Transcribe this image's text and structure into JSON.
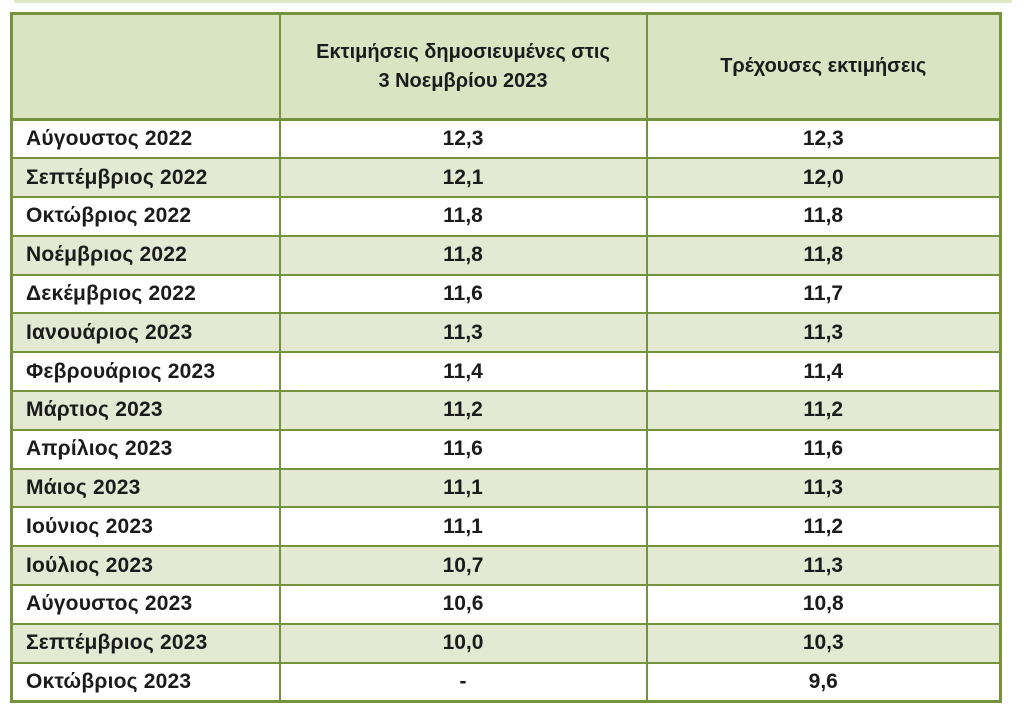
{
  "colors": {
    "border": "#76923c",
    "header_bg": "#d8e4c2",
    "shaded_row_bg": "#e3e9d2",
    "plain_row_bg": "#ffffff",
    "text": "#1b1b1b"
  },
  "table": {
    "header": {
      "month_col": "",
      "published_col": "Εκτιμήσεις δημοσιευμένες στις 3 Νοεμβρίου 2023",
      "current_col": "Τρέχουσες εκτιμήσεις"
    },
    "rows": [
      {
        "month": "Αύγουστος 2022",
        "published": "12,3",
        "current": "12,3"
      },
      {
        "month": "Σεπτέμβριος 2022",
        "published": "12,1",
        "current": "12,0"
      },
      {
        "month": "Οκτώβριος 2022",
        "published": "11,8",
        "current": "11,8"
      },
      {
        "month": "Νοέμβριος 2022",
        "published": "11,8",
        "current": "11,8"
      },
      {
        "month": "Δεκέμβριος 2022",
        "published": "11,6",
        "current": "11,7"
      },
      {
        "month": "Ιανουάριος 2023",
        "published": "11,3",
        "current": "11,3"
      },
      {
        "month": "Φεβρουάριος 2023",
        "published": "11,4",
        "current": "11,4"
      },
      {
        "month": "Μάρτιος 2023",
        "published": "11,2",
        "current": "11,2"
      },
      {
        "month": "Απρίλιος 2023",
        "published": "11,6",
        "current": "11,6"
      },
      {
        "month": "Μάιος 2023",
        "published": "11,1",
        "current": "11,3"
      },
      {
        "month": "Ιούνιος 2023",
        "published": "11,1",
        "current": "11,2"
      },
      {
        "month": "Ιούλιος 2023",
        "published": "10,7",
        "current": "11,3"
      },
      {
        "month": "Αύγουστος 2023",
        "published": "10,6",
        "current": "10,8"
      },
      {
        "month": "Σεπτέμβριος 2023",
        "published": "10,0",
        "current": "10,3"
      },
      {
        "month": "Οκτώβριος 2023",
        "published": "-",
        "current": "9,6"
      }
    ]
  },
  "chart_data": {
    "type": "table",
    "title": "",
    "columns": [
      "",
      "Εκτιμήσεις δημοσιευμένες στις 3 Νοεμβρίου 2023",
      "Τρέχουσες εκτιμήσεις"
    ],
    "categories": [
      "Αύγουστος 2022",
      "Σεπτέμβριος 2022",
      "Οκτώβριος 2022",
      "Νοέμβριος 2022",
      "Δεκέμβριος 2022",
      "Ιανουάριος 2023",
      "Φεβρουάριος 2023",
      "Μάρτιος 2023",
      "Απρίλιος 2023",
      "Μάιος 2023",
      "Ιούνιος 2023",
      "Ιούλιος 2023",
      "Αύγουστος 2023",
      "Σεπτέμβριος 2023",
      "Οκτώβριος 2023"
    ],
    "series": [
      {
        "name": "Εκτιμήσεις δημοσιευμένες στις 3 Νοεμβρίου 2023",
        "values": [
          12.3,
          12.1,
          11.8,
          11.8,
          11.6,
          11.3,
          11.4,
          11.2,
          11.6,
          11.1,
          11.1,
          10.7,
          10.6,
          10.0,
          null
        ]
      },
      {
        "name": "Τρέχουσες εκτιμήσεις",
        "values": [
          12.3,
          12.0,
          11.8,
          11.8,
          11.7,
          11.3,
          11.4,
          11.2,
          11.6,
          11.3,
          11.2,
          11.3,
          10.8,
          10.3,
          9.6
        ]
      }
    ],
    "decimal_separator": ",",
    "missing_value_symbol": "-",
    "layout": {
      "header_bg": "#d8e4c2",
      "row_striping": "white / pale green alternating",
      "grid": "olive green borders"
    }
  }
}
